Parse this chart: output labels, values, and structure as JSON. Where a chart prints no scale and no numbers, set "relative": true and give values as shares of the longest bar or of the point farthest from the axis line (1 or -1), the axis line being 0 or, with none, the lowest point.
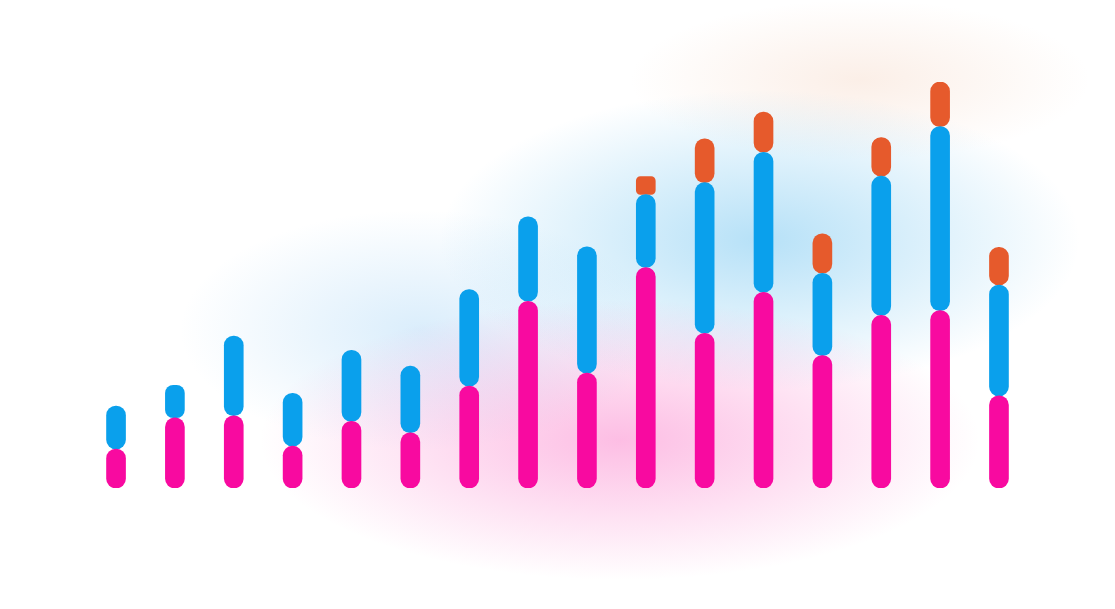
{
  "chart_data": {
    "type": "bar",
    "relative": true,
    "stacked": true,
    "tick_labels": false,
    "categories": [
      null,
      null,
      null,
      null,
      null,
      null,
      null,
      null,
      null,
      null,
      null,
      null,
      null,
      null,
      null,
      null
    ],
    "series": [
      {
        "color": "#f80aa0",
        "values": [
          0.096,
          0.173,
          0.178,
          0.103,
          0.164,
          0.136,
          0.251,
          0.46,
          0.283,
          0.543,
          0.381,
          0.482,
          0.326,
          0.425,
          0.437,
          0.227
        ]
      },
      {
        "color": "#0aa0ec",
        "values": [
          0.106,
          0.08,
          0.196,
          0.13,
          0.175,
          0.164,
          0.238,
          0.208,
          0.311,
          0.18,
          0.371,
          0.345,
          0.203,
          0.343,
          0.453,
          0.273
        ]
      },
      {
        "color": "#e65a2c",
        "values": [
          null,
          null,
          null,
          null,
          null,
          null,
          null,
          null,
          null,
          0.044,
          0.108,
          0.099,
          0.097,
          0.095,
          0.11,
          0.093
        ]
      }
    ]
  }
}
